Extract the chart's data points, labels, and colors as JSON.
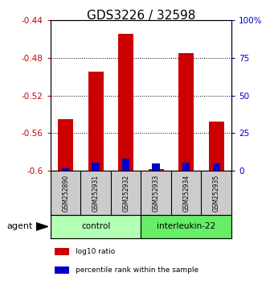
{
  "title": "GDS3226 / 32598",
  "samples": [
    "GSM252890",
    "GSM252931",
    "GSM252932",
    "GSM252933",
    "GSM252934",
    "GSM252935"
  ],
  "log10_ratio": [
    -0.545,
    -0.495,
    -0.455,
    -0.598,
    -0.475,
    -0.548
  ],
  "percentile_rank": [
    2.0,
    5.5,
    8.0,
    5.0,
    5.5,
    5.0
  ],
  "ylim_left": [
    -0.6,
    -0.44
  ],
  "ylim_right": [
    0,
    100
  ],
  "yticks_left": [
    -0.6,
    -0.56,
    -0.52,
    -0.48,
    -0.44
  ],
  "yticks_right": [
    0,
    25,
    50,
    75,
    100
  ],
  "grid_lines": [
    -0.48,
    -0.52,
    -0.56
  ],
  "groups": [
    {
      "label": "control",
      "indices": [
        0,
        1,
        2
      ],
      "color": "#b3ffb3"
    },
    {
      "label": "interleukin-22",
      "indices": [
        3,
        4,
        5
      ],
      "color": "#66ee66"
    }
  ],
  "bar_width": 0.5,
  "red_color": "#cc0000",
  "blue_color": "#0000cc",
  "title_fontsize": 11,
  "axis_color_left": "#cc0000",
  "axis_color_right": "#0000cc",
  "agent_label": "agent",
  "legend_items": [
    {
      "label": "log10 ratio",
      "color": "#cc0000"
    },
    {
      "label": "percentile rank within the sample",
      "color": "#0000cc"
    }
  ],
  "sample_box_color": "#cccccc",
  "control_color": "#b3ffb3",
  "interleukin_color": "#66ee66"
}
